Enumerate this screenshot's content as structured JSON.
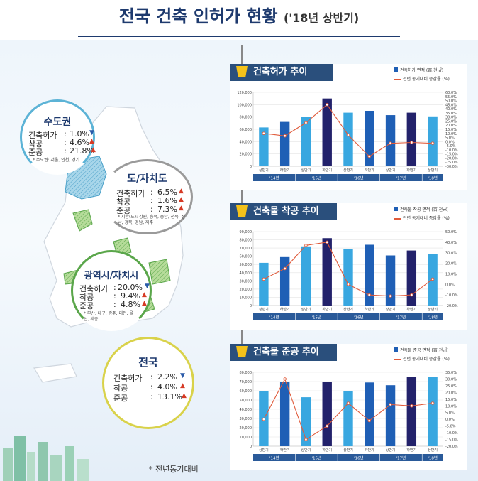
{
  "page": {
    "title": "전국 건축 인허가 현황",
    "title_suffix": "('18년 상반기)",
    "footnote": "* 전년동기대비"
  },
  "regions": [
    {
      "key": "capital",
      "title": "수도권",
      "color": "#5cb3d6",
      "rows": [
        {
          "label": "건축허가",
          "value": "1.0%",
          "trend": "down"
        },
        {
          "label": "착공",
          "value": "4.6%",
          "trend": "up"
        },
        {
          "label": "준공",
          "value": "21.8%",
          "trend": "up"
        }
      ],
      "note": "* 수도권: 서울, 인천, 경기"
    },
    {
      "key": "province",
      "title": "도/자치도",
      "color": "#9a9a9a",
      "rows": [
        {
          "label": "건축허가",
          "value": "6.5%",
          "trend": "up"
        },
        {
          "label": "착공",
          "value": "1.6%",
          "trend": "up"
        },
        {
          "label": "준공",
          "value": "7.3%",
          "trend": "up"
        }
      ],
      "note": "* 지방(도): 강원, 충북, 충남, 전북, 전남, 경북, 경남, 제주"
    },
    {
      "key": "metro",
      "title": "광역시/자치시",
      "color": "#5aa64a",
      "rows": [
        {
          "label": "건축허가",
          "value": "20.0%",
          "trend": "down"
        },
        {
          "label": "착공",
          "value": "9.4%",
          "trend": "up"
        },
        {
          "label": "준공",
          "value": "4.8%",
          "trend": "up"
        }
      ],
      "note": "* 부산, 대구, 광주, 대전, 울산, 세종"
    },
    {
      "key": "nation",
      "title": "전국",
      "color": "#d9d24a",
      "rows": [
        {
          "label": "건축허가",
          "value": "2.2%",
          "trend": "down"
        },
        {
          "label": "착공",
          "value": "4.0%",
          "trend": "up"
        },
        {
          "label": "준공",
          "value": "13.1%",
          "trend": "up"
        }
      ],
      "note": ""
    }
  ],
  "colors": {
    "navy": "#1e3a6e",
    "panel_header": "#2a4f7c",
    "bar_light": "#39a7e0",
    "bar_mid": "#1f5fb5",
    "bar_dark": "#23226b",
    "line": "#e05a3a",
    "up_arrow": "#d63a25",
    "down_arrow": "#2a5aa8"
  },
  "chart_data": [
    {
      "type": "bar",
      "title": "건축허가 추이",
      "legend": [
        "건축허가 면적 (百,천㎡)",
        "전년 동기대비 증감률 (%)"
      ],
      "categories": [
        "상반기",
        "하반기",
        "상반기",
        "하반기",
        "상반기",
        "하반기",
        "상반기",
        "하반기",
        "상반기"
      ],
      "year_labels": [
        "'14년",
        "'15년",
        "'16년",
        "'17년",
        "'18년"
      ],
      "year_spans": [
        2,
        2,
        2,
        2,
        1
      ],
      "series": [
        {
          "values": [
            63000,
            72000,
            80000,
            110000,
            87000,
            90000,
            83000,
            87000,
            81000
          ]
        },
        {
          "axis": "right",
          "values": [
            10,
            7,
            23,
            45,
            8,
            -18,
            -2,
            -1,
            -2
          ]
        }
      ],
      "ylim": [
        0,
        120000
      ],
      "yticks": [
        "0",
        "20,000",
        "40,000",
        "60,000",
        "80,000",
        "100,000",
        "120,000"
      ],
      "y2lim": [
        -30,
        60
      ],
      "y2ticks": [
        "-30.0%",
        "-25.0%",
        "-20.0%",
        "-15.0%",
        "-10.0%",
        "-5.0%",
        "0.0%",
        "5.0%",
        "10.0%",
        "15.0%",
        "20.0%",
        "25.0%",
        "30.0%",
        "35.0%",
        "40.0%",
        "45.0%",
        "50.0%",
        "55.0%",
        "60.0%"
      ]
    },
    {
      "type": "bar",
      "title": "건축물 착공 추이",
      "legend": [
        "건축물 착공 면적 (百,천㎡)",
        "전년 동기대비 증감률 (%)"
      ],
      "categories": [
        "상반기",
        "하반기",
        "상반기",
        "하반기",
        "상반기",
        "하반기",
        "상반기",
        "하반기",
        "상반기"
      ],
      "year_labels": [
        "'14년",
        "'15년",
        "'16년",
        "'17년",
        "'18년"
      ],
      "year_spans": [
        2,
        2,
        2,
        2,
        1
      ],
      "series": [
        {
          "values": [
            52000,
            59000,
            72000,
            82000,
            69000,
            74000,
            61000,
            67000,
            63000
          ]
        },
        {
          "axis": "right",
          "values": [
            5,
            15,
            37,
            40,
            0,
            -10,
            -11,
            -10,
            5
          ]
        }
      ],
      "ylim": [
        0,
        90000
      ],
      "yticks": [
        "0",
        "10,000",
        "20,000",
        "30,000",
        "40,000",
        "50,000",
        "60,000",
        "70,000",
        "80,000",
        "90,000"
      ],
      "y2lim": [
        -20,
        50
      ],
      "y2ticks": [
        "-20.0%",
        "-10.0%",
        "0.0%",
        "10.0%",
        "20.0%",
        "30.0%",
        "40.0%",
        "50.0%"
      ]
    },
    {
      "type": "bar",
      "title": "건축물 준공 추이",
      "legend": [
        "건축물 준공 면적 (百,천㎡)",
        "전년 동기대비 증감률 (%)"
      ],
      "categories": [
        "상반기",
        "하반기",
        "상반기",
        "하반기",
        "상반기",
        "하반기",
        "상반기",
        "하반기",
        "상반기"
      ],
      "year_labels": [
        "'14년",
        "'15년",
        "'16년",
        "'17년",
        "'18년"
      ],
      "year_spans": [
        2,
        2,
        2,
        2,
        1
      ],
      "series": [
        {
          "values": [
            60000,
            70000,
            53000,
            70000,
            60000,
            69000,
            66000,
            75000,
            75000
          ]
        },
        {
          "axis": "right",
          "values": [
            0,
            30,
            -15,
            -5,
            12,
            -1,
            11,
            10,
            12
          ]
        }
      ],
      "ylim": [
        0,
        80000
      ],
      "yticks": [
        "0",
        "10,000",
        "20,000",
        "30,000",
        "40,000",
        "50,000",
        "60,000",
        "70,000",
        "80,000"
      ],
      "y2lim": [
        -20,
        35
      ],
      "y2ticks": [
        "-20.0%",
        "-15.0%",
        "-10.0%",
        "-5.0%",
        "0.0%",
        "5.0%",
        "10.0%",
        "15.0%",
        "20.0%",
        "25.0%",
        "30.0%",
        "35.0%"
      ]
    }
  ]
}
